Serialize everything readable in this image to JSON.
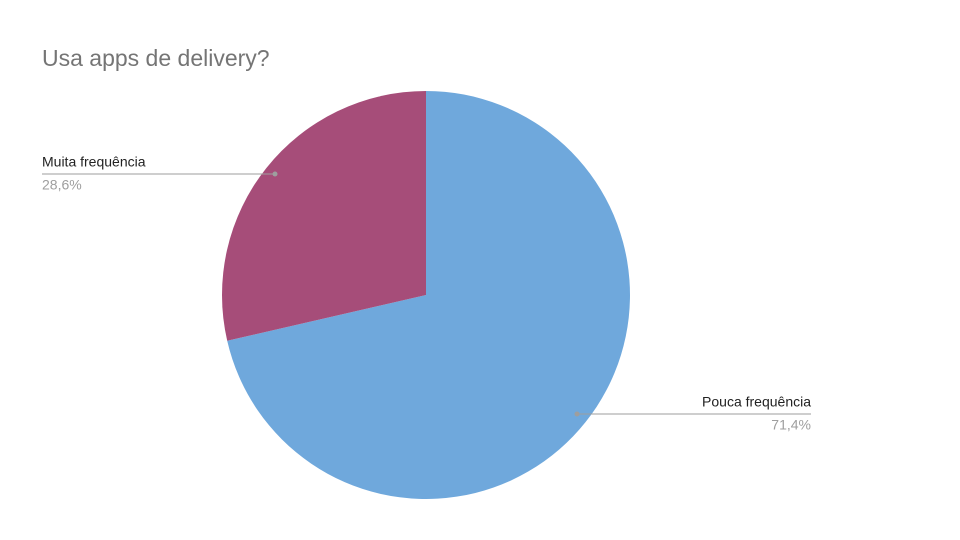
{
  "chart_data": {
    "type": "pie",
    "title": "Usa apps de delivery?",
    "categories": [
      "Pouca frequência",
      "Muita frequência"
    ],
    "values": [
      71.4,
      28.6
    ],
    "value_labels": [
      "71,4%",
      "28,6%"
    ],
    "colors": [
      "#6fa8dc",
      "#a64d79"
    ]
  }
}
